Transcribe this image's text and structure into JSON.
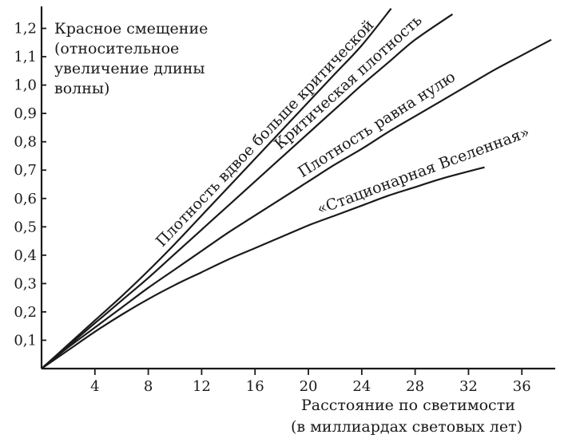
{
  "chart_data": {
    "type": "line",
    "title": "",
    "ylabel_lines": [
      "Красное смещение",
      "(относительное",
      "увеличение длины",
      "волны)"
    ],
    "xlabel_lines": [
      "Расстояние по светимости",
      "(в миллиардах световых лет)"
    ],
    "x_ticks": [
      4,
      8,
      12,
      16,
      20,
      24,
      28,
      32,
      36
    ],
    "y_ticks": [
      "0,1",
      "0,2",
      "0,3",
      "0,4",
      "0,5",
      "0,6",
      "0,7",
      "0,8",
      "0,9",
      "1,0",
      "1,1",
      "1,2"
    ],
    "y_tick_values": [
      0.1,
      0.2,
      0.3,
      0.4,
      0.5,
      0.6,
      0.7,
      0.8,
      0.9,
      1.0,
      1.1,
      1.2
    ],
    "xlim": [
      0,
      38.5
    ],
    "ylim": [
      0,
      1.3
    ],
    "grid": false,
    "legend": "none (labels placed along curves)",
    "series": [
      {
        "name": "Плотность вдвое больше критической",
        "x": [
          0,
          2,
          4,
          6,
          8,
          10,
          12,
          14,
          16,
          18,
          20,
          22,
          24,
          26.2
        ],
        "y": [
          0,
          0.085,
          0.17,
          0.255,
          0.345,
          0.44,
          0.54,
          0.64,
          0.74,
          0.84,
          0.94,
          1.04,
          1.14,
          1.27
        ]
      },
      {
        "name": "Критическая плотность",
        "x": [
          0,
          2,
          4,
          6,
          8,
          10,
          12,
          14,
          16,
          18,
          20,
          22,
          24,
          26,
          28,
          30.8
        ],
        "y": [
          0,
          0.08,
          0.16,
          0.24,
          0.32,
          0.405,
          0.49,
          0.575,
          0.66,
          0.745,
          0.83,
          0.915,
          1.0,
          1.08,
          1.16,
          1.25
        ]
      },
      {
        "name": "Плотность равна нулю",
        "x": [
          0,
          2,
          4,
          6,
          8,
          10,
          12,
          14,
          16,
          18,
          20,
          22,
          24,
          26,
          28,
          30,
          32,
          34,
          36,
          38.2
        ],
        "y": [
          0,
          0.075,
          0.145,
          0.215,
          0.285,
          0.35,
          0.415,
          0.48,
          0.54,
          0.6,
          0.66,
          0.72,
          0.775,
          0.835,
          0.89,
          0.945,
          1.0,
          1.055,
          1.105,
          1.16
        ]
      },
      {
        "name": "«Стационарная Вселенная»",
        "x": [
          0,
          2,
          4,
          6,
          8,
          10,
          12,
          14,
          16,
          18,
          20,
          22,
          24,
          26,
          28,
          30,
          33.2
        ],
        "y": [
          0,
          0.065,
          0.13,
          0.19,
          0.245,
          0.295,
          0.34,
          0.385,
          0.425,
          0.465,
          0.505,
          0.54,
          0.575,
          0.61,
          0.64,
          0.67,
          0.71
        ]
      }
    ]
  }
}
